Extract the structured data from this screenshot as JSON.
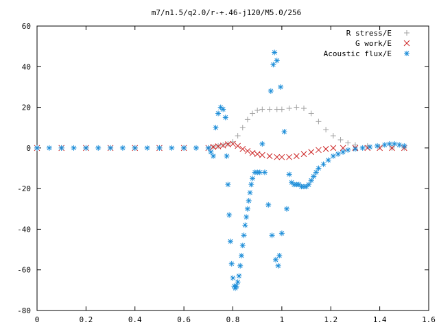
{
  "chart_data": {
    "type": "scatter",
    "title": "m7/n1.5/q2.0/r-+.46-j120/M5.0/256",
    "xlabel": "",
    "ylabel": "",
    "xlim": [
      0,
      1.6
    ],
    "ylim": [
      -80,
      60
    ],
    "x_ticks": [
      0,
      0.2,
      0.4,
      0.6,
      0.8,
      1,
      1.2,
      1.4,
      1.6
    ],
    "y_ticks": [
      -80,
      -60,
      -40,
      -20,
      0,
      20,
      40,
      60
    ],
    "legend_position": "top-right",
    "grid": false,
    "series": [
      {
        "name": "R stress/E",
        "marker": "plus",
        "color": "#a0a0a0",
        "points": [
          [
            0.0,
            0
          ],
          [
            0.1,
            0
          ],
          [
            0.2,
            0
          ],
          [
            0.3,
            0
          ],
          [
            0.4,
            0
          ],
          [
            0.5,
            0
          ],
          [
            0.6,
            0
          ],
          [
            0.7,
            0
          ],
          [
            0.72,
            0.5
          ],
          [
            0.74,
            1
          ],
          [
            0.76,
            1.5
          ],
          [
            0.78,
            2
          ],
          [
            0.8,
            3
          ],
          [
            0.82,
            6
          ],
          [
            0.84,
            10
          ],
          [
            0.86,
            14
          ],
          [
            0.88,
            17
          ],
          [
            0.9,
            18.5
          ],
          [
            0.92,
            19
          ],
          [
            0.95,
            19
          ],
          [
            0.98,
            19
          ],
          [
            1.0,
            19
          ],
          [
            1.03,
            19.5
          ],
          [
            1.06,
            20
          ],
          [
            1.09,
            19.5
          ],
          [
            1.12,
            17
          ],
          [
            1.15,
            13
          ],
          [
            1.18,
            9
          ],
          [
            1.21,
            6
          ],
          [
            1.24,
            4
          ],
          [
            1.27,
            2.5
          ],
          [
            1.3,
            1.5
          ],
          [
            1.35,
            1
          ],
          [
            1.4,
            0.5
          ],
          [
            1.45,
            0
          ],
          [
            1.5,
            0
          ]
        ]
      },
      {
        "name": "G work/E",
        "marker": "cross",
        "color": "#cc2222",
        "points": [
          [
            0.0,
            0
          ],
          [
            0.1,
            0
          ],
          [
            0.2,
            0
          ],
          [
            0.3,
            0
          ],
          [
            0.4,
            0
          ],
          [
            0.5,
            0
          ],
          [
            0.6,
            0
          ],
          [
            0.7,
            0
          ],
          [
            0.72,
            0.5
          ],
          [
            0.74,
            0.8
          ],
          [
            0.76,
            1.2
          ],
          [
            0.78,
            1.8
          ],
          [
            0.8,
            2
          ],
          [
            0.82,
            1
          ],
          [
            0.84,
            -0.5
          ],
          [
            0.86,
            -1.5
          ],
          [
            0.88,
            -2.5
          ],
          [
            0.9,
            -3
          ],
          [
            0.92,
            -3.5
          ],
          [
            0.95,
            -4
          ],
          [
            0.98,
            -4.5
          ],
          [
            1.0,
            -4.5
          ],
          [
            1.03,
            -4.5
          ],
          [
            1.06,
            -4
          ],
          [
            1.09,
            -3
          ],
          [
            1.12,
            -2
          ],
          [
            1.15,
            -1
          ],
          [
            1.18,
            -0.5
          ],
          [
            1.21,
            0
          ],
          [
            1.25,
            0
          ],
          [
            1.3,
            0
          ],
          [
            1.35,
            0
          ],
          [
            1.4,
            0
          ],
          [
            1.45,
            0
          ],
          [
            1.5,
            0
          ]
        ]
      },
      {
        "name": "Acoustic flux/E",
        "marker": "star",
        "color": "#1a8cd8",
        "points": [
          [
            0.0,
            0
          ],
          [
            0.05,
            0
          ],
          [
            0.1,
            0
          ],
          [
            0.15,
            0
          ],
          [
            0.2,
            0
          ],
          [
            0.25,
            0
          ],
          [
            0.3,
            0
          ],
          [
            0.35,
            0
          ],
          [
            0.4,
            0
          ],
          [
            0.45,
            0
          ],
          [
            0.5,
            0
          ],
          [
            0.55,
            0
          ],
          [
            0.6,
            0
          ],
          [
            0.65,
            0
          ],
          [
            0.7,
            0
          ],
          [
            0.71,
            -2
          ],
          [
            0.72,
            -4
          ],
          [
            0.73,
            10
          ],
          [
            0.74,
            17
          ],
          [
            0.75,
            20
          ],
          [
            0.76,
            19
          ],
          [
            0.77,
            15
          ],
          [
            0.775,
            -4
          ],
          [
            0.78,
            -18
          ],
          [
            0.785,
            -33
          ],
          [
            0.79,
            -46
          ],
          [
            0.795,
            -57
          ],
          [
            0.8,
            -64
          ],
          [
            0.805,
            -68
          ],
          [
            0.81,
            -69
          ],
          [
            0.815,
            -68
          ],
          [
            0.82,
            -66
          ],
          [
            0.825,
            -63
          ],
          [
            0.83,
            -58
          ],
          [
            0.835,
            -53
          ],
          [
            0.84,
            -48
          ],
          [
            0.845,
            -43
          ],
          [
            0.85,
            -38
          ],
          [
            0.855,
            -34
          ],
          [
            0.86,
            -30
          ],
          [
            0.865,
            -26
          ],
          [
            0.87,
            -22
          ],
          [
            0.875,
            -18
          ],
          [
            0.88,
            -15
          ],
          [
            0.89,
            -12
          ],
          [
            0.9,
            -12
          ],
          [
            0.91,
            -12
          ],
          [
            0.92,
            2
          ],
          [
            0.93,
            -12
          ],
          [
            0.945,
            -28
          ],
          [
            0.955,
            28
          ],
          [
            0.96,
            -43
          ],
          [
            0.965,
            41
          ],
          [
            0.97,
            47
          ],
          [
            0.975,
            -55
          ],
          [
            0.98,
            43
          ],
          [
            0.985,
            -58
          ],
          [
            0.99,
            -53
          ],
          [
            0.995,
            30
          ],
          [
            1.0,
            -42
          ],
          [
            1.01,
            8
          ],
          [
            1.02,
            -30
          ],
          [
            1.03,
            -13
          ],
          [
            1.04,
            -17
          ],
          [
            1.05,
            -18
          ],
          [
            1.06,
            -18
          ],
          [
            1.07,
            -18
          ],
          [
            1.08,
            -19
          ],
          [
            1.09,
            -19
          ],
          [
            1.1,
            -19
          ],
          [
            1.11,
            -18
          ],
          [
            1.12,
            -16
          ],
          [
            1.13,
            -14
          ],
          [
            1.14,
            -12
          ],
          [
            1.15,
            -10
          ],
          [
            1.17,
            -8
          ],
          [
            1.19,
            -6
          ],
          [
            1.21,
            -4
          ],
          [
            1.23,
            -3
          ],
          [
            1.25,
            -2
          ],
          [
            1.27,
            -1
          ],
          [
            1.3,
            -0.5
          ],
          [
            1.33,
            0
          ],
          [
            1.36,
            0.5
          ],
          [
            1.39,
            1
          ],
          [
            1.42,
            1.5
          ],
          [
            1.44,
            2
          ],
          [
            1.46,
            2
          ],
          [
            1.48,
            1.5
          ],
          [
            1.5,
            1
          ]
        ]
      }
    ]
  }
}
